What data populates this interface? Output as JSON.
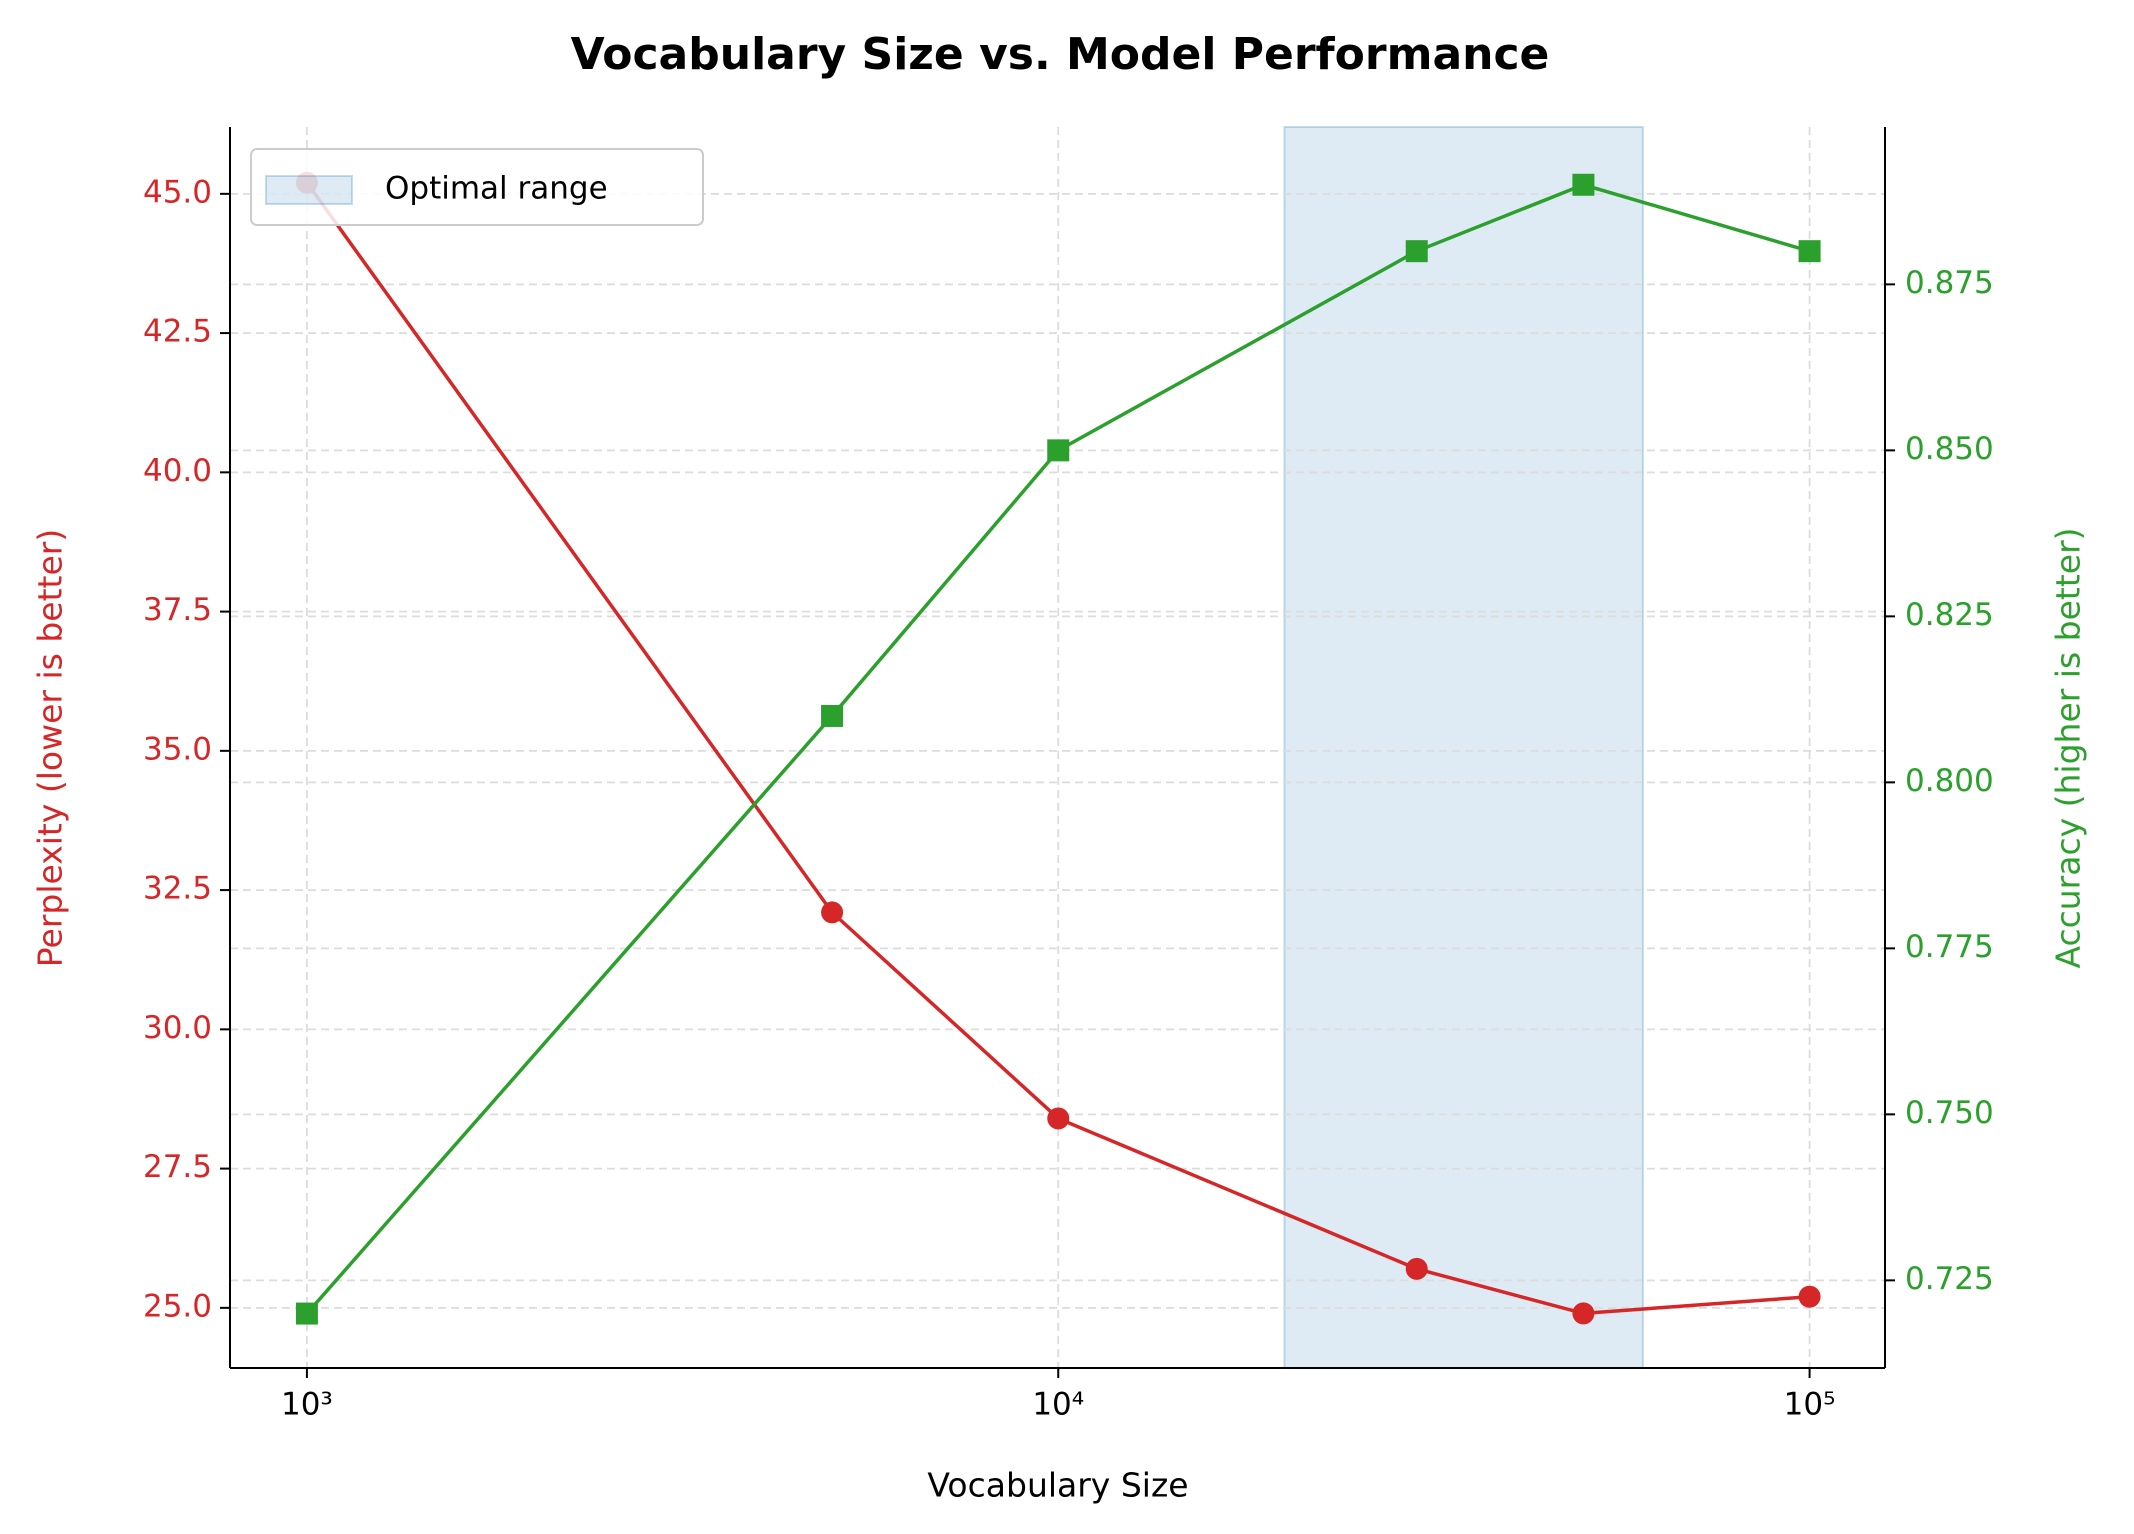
{
  "chart_data": {
    "type": "line",
    "title": "Vocabulary Size vs. Model Performance",
    "x_label": "Vocabulary Size",
    "y_label": "Perplexity (lower is better)",
    "y2_label": "Accuracy (higher is better)",
    "x_scale": "log",
    "x": [
      1000,
      5000,
      10000,
      30000,
      50000,
      100000
    ],
    "series": [
      {
        "name": "Perplexity",
        "color": "#d62728",
        "marker": "circle",
        "values": [
          45.2,
          32.1,
          28.4,
          25.7,
          24.9,
          25.2
        ]
      },
      {
        "name": "Accuracy",
        "color": "#2ca02c",
        "marker": "square",
        "axis": "y2",
        "values": [
          0.72,
          0.81,
          0.85,
          0.88,
          0.89,
          0.88
        ]
      }
    ],
    "span": {
      "name": "Optimal range",
      "x": [
        20000,
        60000
      ],
      "color": "#1f77b4"
    },
    "xlim": [
      790,
      126000
    ],
    "xticks": [
      {
        "value": 1000,
        "label": "10³"
      },
      {
        "value": 10000,
        "label": "10⁴"
      },
      {
        "value": 100000,
        "label": "10⁵"
      }
    ],
    "ylim": [
      23.92,
      46.2
    ],
    "yticks": [
      {
        "value": 25,
        "label": "25.0"
      },
      27.5,
      {
        "value": 30,
        "label": "30.0"
      },
      32.5,
      {
        "value": 35,
        "label": "35.0"
      },
      37.5,
      {
        "value": 40,
        "label": "40.0"
      },
      42.5,
      {
        "value": 45,
        "label": "45.0"
      }
    ],
    "y2lim": [
      0.7118,
      0.8987
    ],
    "y2ticks": [
      {
        "value": 0.725,
        "label": "0.725"
      },
      {
        "value": 0.75,
        "label": "0.750"
      },
      {
        "value": 0.775,
        "label": "0.775"
      },
      {
        "value": 0.8,
        "label": "0.800"
      },
      {
        "value": 0.825,
        "label": "0.825"
      },
      {
        "value": 0.85,
        "label": "0.850"
      },
      {
        "value": 0.875,
        "label": "0.875"
      }
    ],
    "grid": true,
    "legend": "upper left"
  }
}
